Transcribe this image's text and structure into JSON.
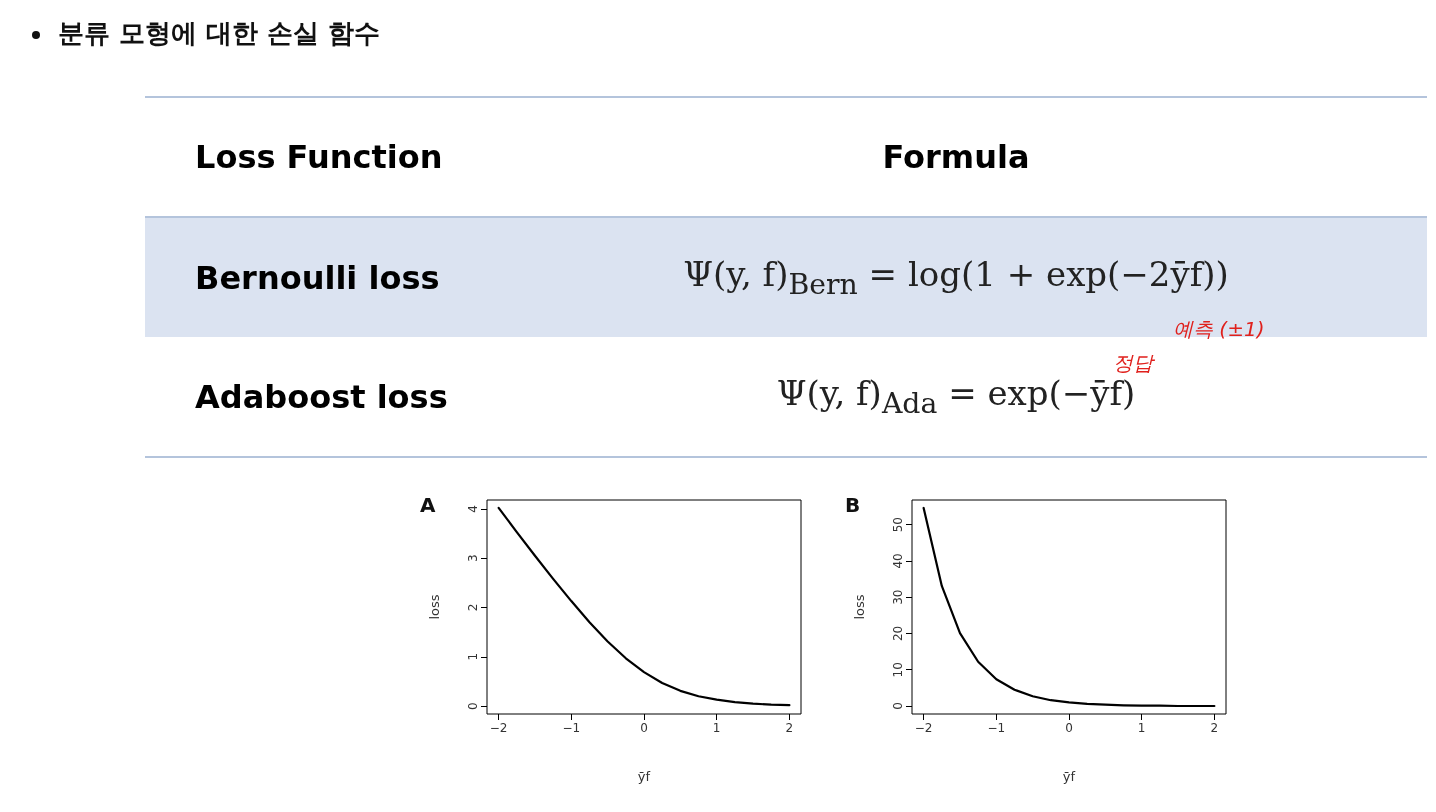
{
  "chart_data": [
    {
      "type": "other",
      "title": "분류 모형에 대한 손실 함수",
      "categories": [
        "Loss Function",
        "Formula"
      ],
      "y_categories": [
        "Bernoulli loss",
        "Adaboost loss"
      ],
      "cell_labels": [
        [
          "Ψ(y, f)$_{Bern}$ = log(1 + exp(−2ȳf))"
        ],
        [
          "Ψ(y, f)$_{Ada}$ = exp(−ȳf)"
        ]
      ],
      "annotations": [
        "예측 (±1)",
        "정답"
      ]
    },
    {
      "type": "line",
      "title": "A",
      "xlabel": "ȳf",
      "ylabel": "loss",
      "x": [
        -2,
        -1.75,
        -1.5,
        -1.25,
        -1,
        -0.75,
        -0.5,
        -0.25,
        0,
        0.25,
        0.5,
        0.75,
        1,
        1.25,
        1.5,
        1.75,
        2
      ],
      "series": [
        {
          "color": "#000000",
          "values": [
            4.02,
            3.53,
            3.05,
            2.58,
            2.13,
            1.7,
            1.31,
            0.97,
            0.69,
            0.47,
            0.31,
            0.2,
            0.13,
            0.08,
            0.05,
            0.03,
            0.02
          ]
        }
      ],
      "xlim": [
        -2.16,
        2.16
      ],
      "xticks": [
        -2,
        -1,
        0,
        1,
        2
      ],
      "ylim": [
        -0.16,
        4.18
      ],
      "yticks": [
        0,
        1,
        2,
        3,
        4
      ],
      "grid": false,
      "marker": "none",
      "line_style": "solid"
    },
    {
      "type": "line",
      "title": "B",
      "xlabel": "ȳf",
      "ylabel": "loss",
      "x": [
        -2,
        -1.75,
        -1.5,
        -1.25,
        -1,
        -0.75,
        -0.5,
        -0.25,
        0,
        0.25,
        0.5,
        0.75,
        1,
        1.25,
        1.5,
        1.75,
        2
      ],
      "series": [
        {
          "color": "#000000",
          "values": [
            54.6,
            33.1,
            20.1,
            12.2,
            7.4,
            4.5,
            2.7,
            1.6,
            1.0,
            0.6,
            0.4,
            0.2,
            0.1,
            0.1,
            0.0,
            0.0,
            0.0
          ]
        }
      ],
      "xlim": [
        -2.16,
        2.16
      ],
      "xticks": [
        -2,
        -1,
        0,
        1,
        2
      ],
      "ylim": [
        -2.2,
        56.8
      ],
      "yticks": [
        0,
        10,
        20,
        30,
        40,
        50
      ],
      "grid": false,
      "marker": "none",
      "line_style": "solid"
    }
  ]
}
